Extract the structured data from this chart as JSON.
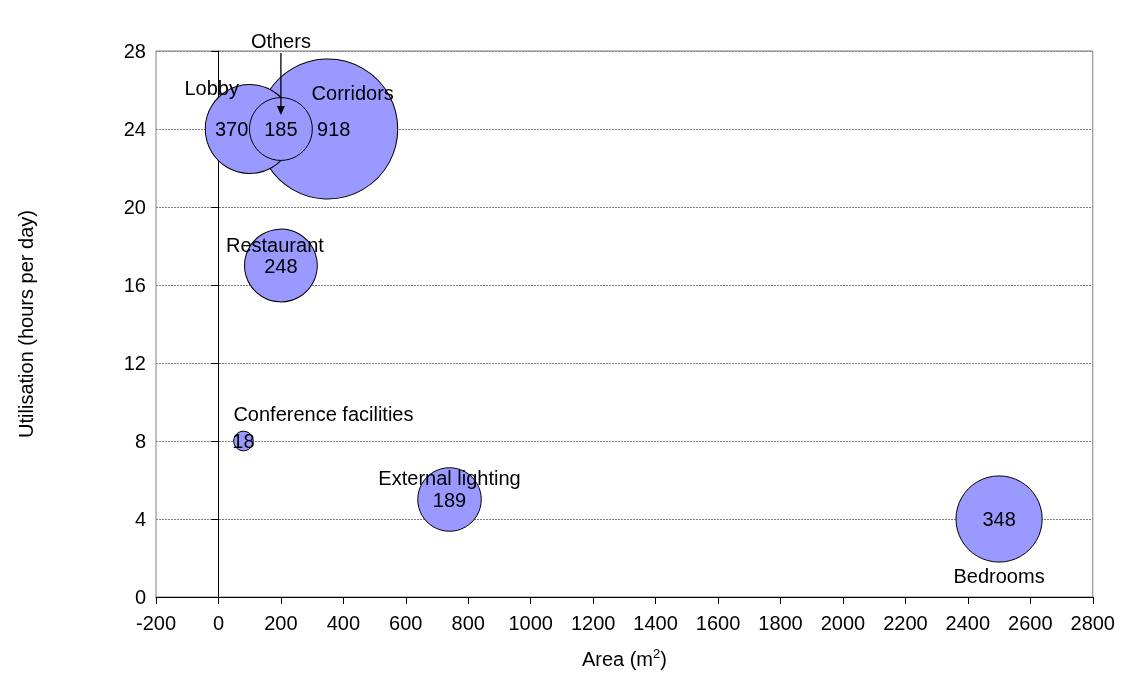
{
  "chart_data": {
    "type": "bubble",
    "xlabel": "Area (m$^{2}$)",
    "ylabel": "Utilisation (hours per day)",
    "xlim": [
      -200,
      2800
    ],
    "xticks": [
      -200,
      0,
      200,
      400,
      600,
      800,
      1000,
      1200,
      1400,
      1600,
      1800,
      2000,
      2200,
      2400,
      2600,
      2800
    ],
    "ylim": [
      0,
      28
    ],
    "yticks": [
      0,
      4,
      8,
      12,
      16,
      20,
      24,
      28
    ],
    "grid": "y",
    "series": [
      {
        "name": "Corridors",
        "color": "#9999ff",
        "x": [
          350
        ],
        "values": [
          24
        ],
        "sizes": [
          918
        ],
        "value_labels": [
          "918"
        ]
      },
      {
        "name": "Lobby",
        "color": "#9999ff",
        "x": [
          100
        ],
        "values": [
          24
        ],
        "sizes": [
          370
        ],
        "value_labels": [
          "370"
        ]
      },
      {
        "name": "Others",
        "color": "#9999ff",
        "x": [
          200
        ],
        "values": [
          24
        ],
        "sizes": [
          185
        ],
        "value_labels": [
          "185"
        ]
      },
      {
        "name": "Restaurant",
        "color": "#9999ff",
        "x": [
          200
        ],
        "values": [
          17
        ],
        "sizes": [
          248
        ],
        "value_labels": [
          "248"
        ]
      },
      {
        "name": "Conference facilities",
        "color": "#9999ff",
        "x": [
          80
        ],
        "values": [
          8
        ],
        "sizes": [
          18
        ],
        "value_labels": [
          "18"
        ]
      },
      {
        "name": "External lighting",
        "color": "#9999ff",
        "x": [
          740
        ],
        "values": [
          5
        ],
        "sizes": [
          189
        ],
        "value_labels": [
          "189"
        ]
      },
      {
        "name": "Bedrooms",
        "color": "#9999ff",
        "x": [
          2500
        ],
        "values": [
          4
        ],
        "sizes": [
          348
        ],
        "value_labels": [
          "348"
        ]
      }
    ]
  }
}
